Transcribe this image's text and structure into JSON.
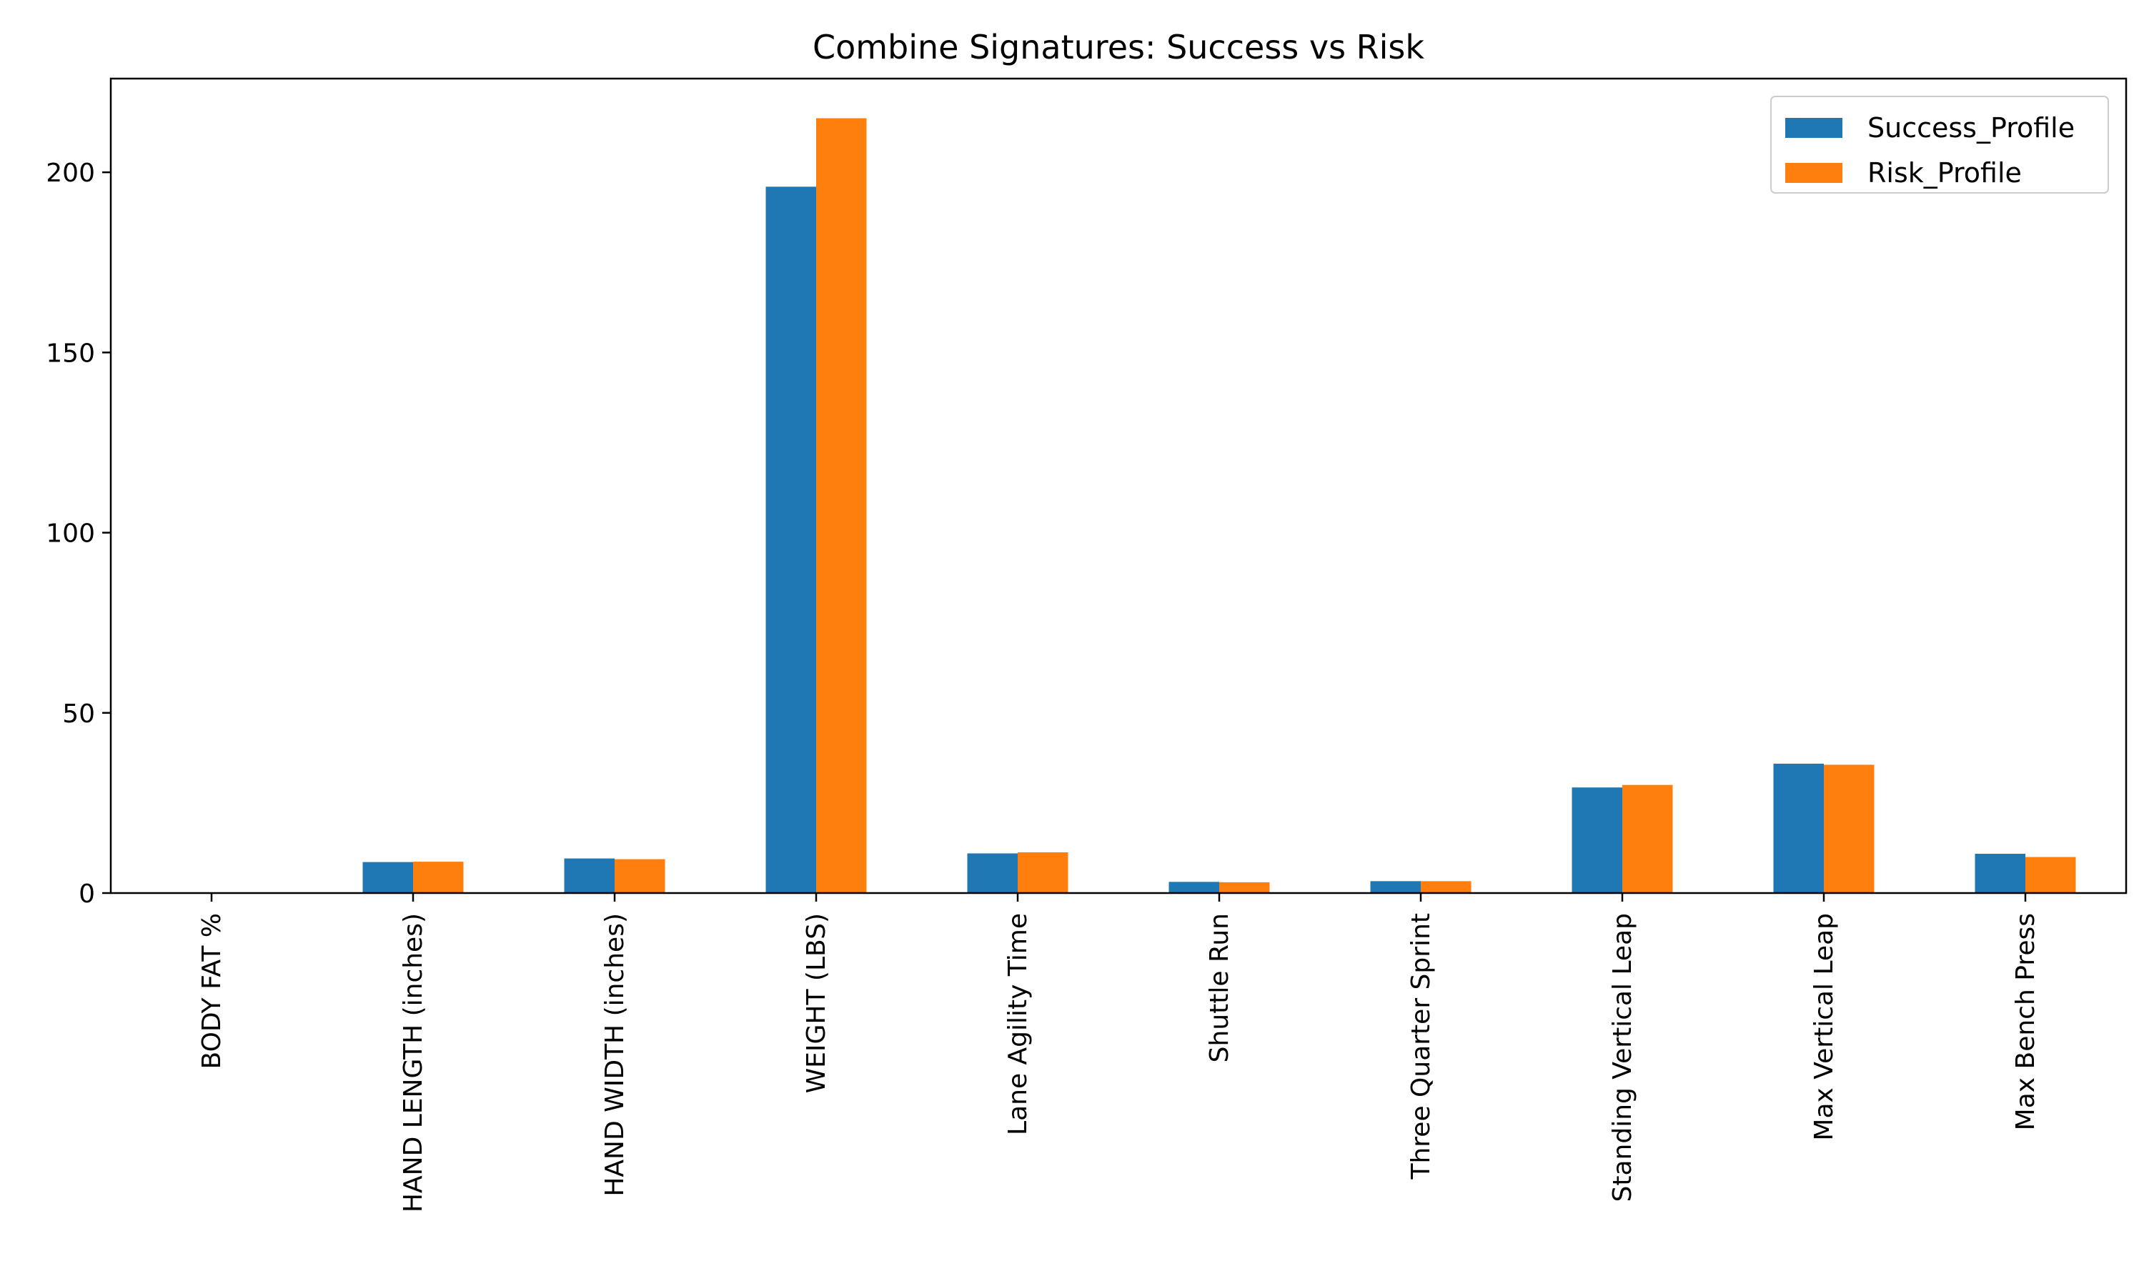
{
  "chart_data": {
    "type": "bar",
    "title": "Combine Signatures: Success vs Risk",
    "xlabel": "",
    "ylabel": "",
    "categories": [
      "BODY FAT %",
      "HAND LENGTH (inches)",
      "HAND WIDTH (inches)",
      "WEIGHT (LBS)",
      "Lane Agility Time",
      "Shuttle Run",
      "Three Quarter Sprint",
      "Standing Vertical Leap",
      "Max Vertical Leap",
      "Max Bench Press"
    ],
    "series": [
      {
        "name": "Success_Profile",
        "color": "#1f77b4",
        "values": [
          0,
          8.6,
          9.6,
          196,
          11.0,
          3.1,
          3.3,
          29.3,
          35.9,
          10.9
        ]
      },
      {
        "name": "Risk_Profile",
        "color": "#ff7f0e",
        "values": [
          0,
          8.7,
          9.4,
          215,
          11.3,
          3.0,
          3.3,
          30.0,
          35.6,
          10.0
        ]
      }
    ],
    "ylim": [
      0,
      226
    ],
    "yticks": [
      0,
      50,
      100,
      150,
      200
    ],
    "grid": false,
    "legend_position": "top-right"
  }
}
